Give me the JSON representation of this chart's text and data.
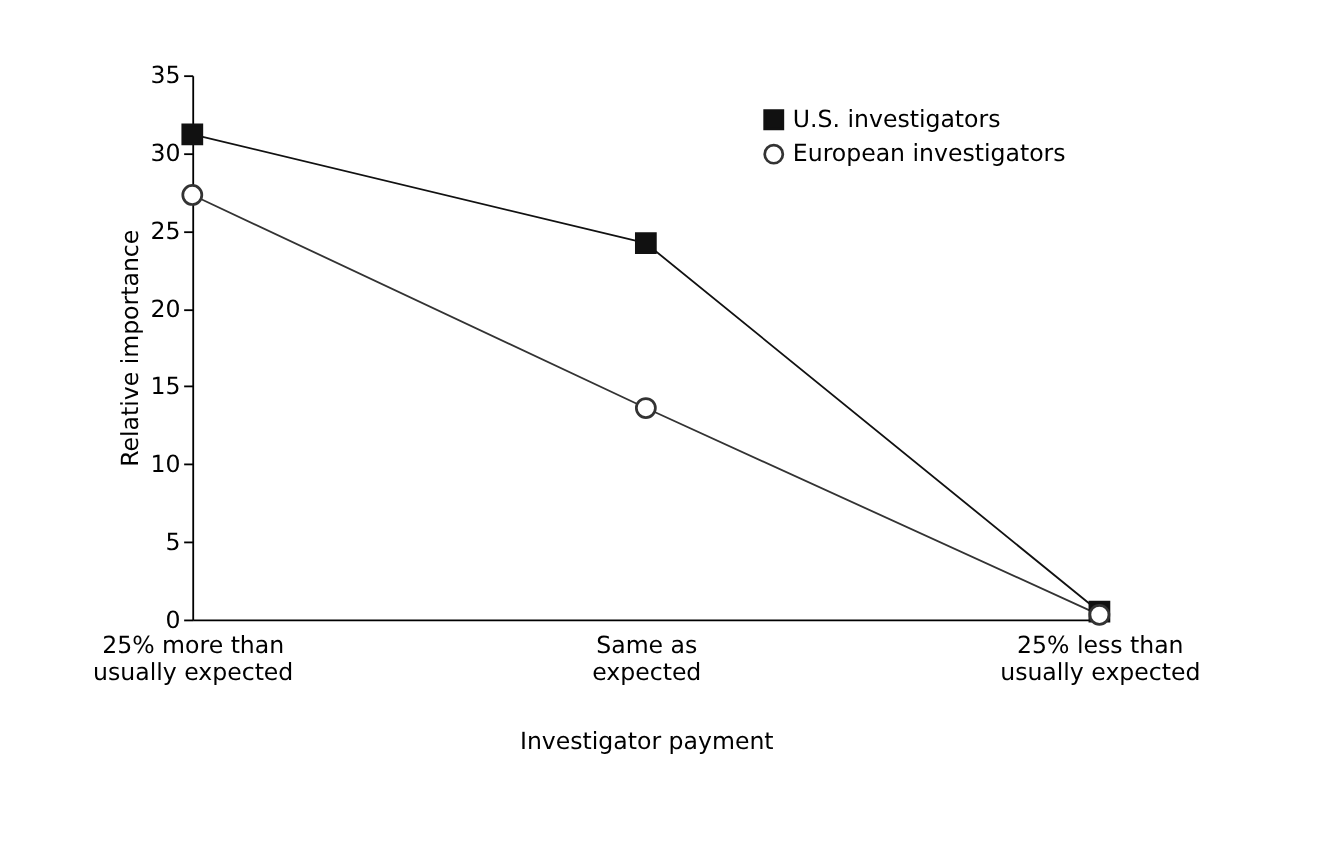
{
  "chart_data": {
    "type": "line",
    "xlabel": "Investigator payment",
    "ylabel": "Relative importance",
    "categories": [
      "25% more than\nusually expected",
      "Same as\nexpected",
      "25% less than\nusually expected"
    ],
    "series": [
      {
        "name": "U.S. investigators",
        "color": "#111111",
        "marker": "square",
        "values": [
          31.2,
          24.2,
          0.5
        ]
      },
      {
        "name": "European investigators",
        "color": "#333333",
        "marker": "circle",
        "values": [
          27.3,
          13.6,
          0.3
        ]
      }
    ],
    "ylim": [
      0,
      35
    ],
    "yticks": [
      0,
      5,
      10,
      15,
      20,
      25,
      30,
      35
    ],
    "grid": false,
    "legend": "top right"
  }
}
